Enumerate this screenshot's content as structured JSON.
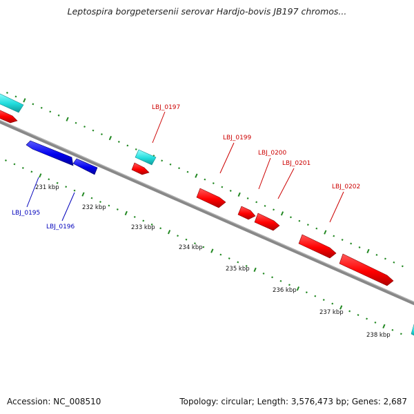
{
  "title": "Leptospira borgpetersenii serovar Hardjo-bovis JB197 chromos...",
  "footer": {
    "accession": "Accession: NC_008510",
    "summary": "Topology: circular; Length: 3,576,473 bp; Genes: 2,687"
  },
  "colors": {
    "forward_cds": "#ff0000",
    "reverse_cds": "#0000ee",
    "rna": "#22dddd",
    "backbone": "#888888",
    "ticks": "#228822",
    "label_forward": "#cc0000",
    "label_reverse": "#0000bb"
  },
  "scale_labels": [
    "231 kbp",
    "232 kbp",
    "233 kbp",
    "234 kbp",
    "235 kbp",
    "236 kbp",
    "237 kbp",
    "238 kbp"
  ],
  "gene_labels": [
    {
      "text": "LBJ_0197",
      "strand": "forward"
    },
    {
      "text": "LBJ_0199",
      "strand": "forward"
    },
    {
      "text": "LBJ_0200",
      "strand": "forward"
    },
    {
      "text": "LBJ_0201",
      "strand": "forward"
    },
    {
      "text": "LBJ_0202",
      "strand": "forward"
    },
    {
      "text": "LBJ_0195",
      "strand": "reverse"
    },
    {
      "text": "LBJ_0196",
      "strand": "reverse"
    }
  ]
}
